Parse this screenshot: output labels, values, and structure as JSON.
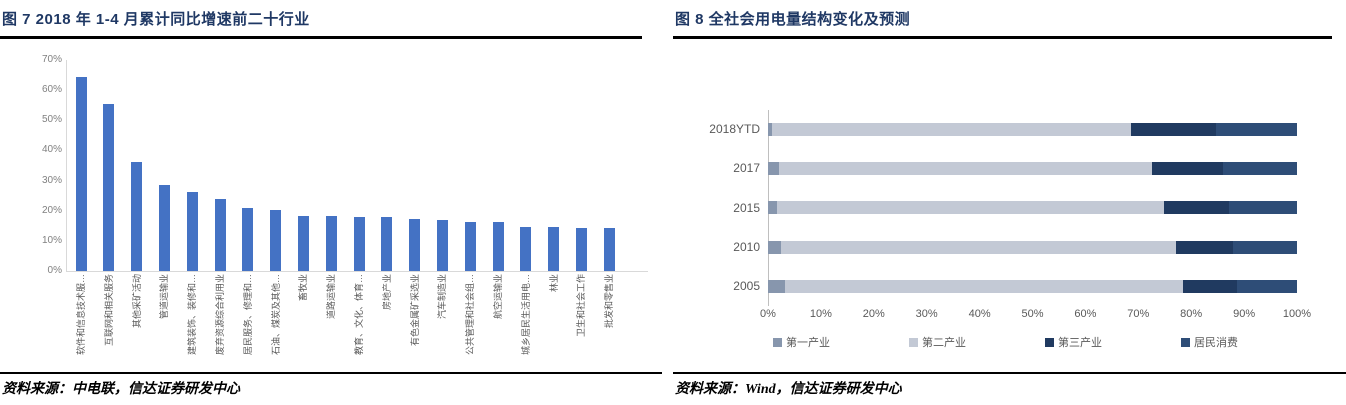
{
  "figure7": {
    "title": "图 7 2018 年 1-4 月累计同比增速前二十行业",
    "source": "资料来源：中电联，信达证券研发中心"
  },
  "figure8": {
    "title": "图 8 全社会用电量结构变化及预测",
    "source": "资料来源：Wind，信达证券研发中心"
  },
  "colors": {
    "title_navy": "#1F3864",
    "bar_blue": "#4472C4",
    "axis_gray": "#D9D9D9",
    "tick_gray": "#808080",
    "label_gray": "#595959"
  },
  "chart_data": [
    {
      "type": "bar",
      "title": "图 7 2018 年 1-4 月累计同比增速前二十行业",
      "categories": [
        "软件和信息技术服…",
        "互联网和相关服务",
        "其他采矿活动",
        "管道运输业",
        "建筑装饰、装修和…",
        "废弃资源综合利用业",
        "居民服务、修理和…",
        "石油、煤炭及其他…",
        "畜牧业",
        "道路运输业",
        "教育、文化、体育…",
        "房地产业",
        "有色金属矿采选业",
        "汽车制造业",
        "公共管理和社会组…",
        "航空运输业",
        "城乡居民生活用电…",
        "林业",
        "卫生和社会工作",
        "批发和零售业"
      ],
      "values": [
        64.5,
        55.4,
        36.3,
        28.6,
        26.2,
        24.0,
        21.0,
        20.3,
        18.4,
        18.2,
        18.0,
        17.9,
        17.3,
        17.0,
        16.4,
        16.2,
        14.6,
        14.5,
        14.4,
        14.2
      ],
      "unit": "%",
      "xlabel": "",
      "ylabel": "",
      "ylim": [
        0,
        70
      ],
      "ytick_labels": [
        "0%",
        "10%",
        "20%",
        "30%",
        "40%",
        "50%",
        "60%",
        "70%"
      ],
      "grid": false,
      "legend_position": "none",
      "bar_color": "#4472C4"
    },
    {
      "type": "bar-horizontal-stacked",
      "title": "图 8 全社会用电量结构变化及预测",
      "categories": [
        "2018YTD",
        "2017",
        "2015",
        "2010",
        "2005"
      ],
      "series": [
        {
          "name": "第一产业",
          "color": "#8796AD",
          "values": [
            0.8,
            2.0,
            1.7,
            2.5,
            3.2
          ]
        },
        {
          "name": "第二产业",
          "color": "#C3C9D5",
          "values": [
            67.8,
            70.5,
            73.1,
            74.6,
            75.3
          ]
        },
        {
          "name": "第三产业",
          "color": "#203A60",
          "values": [
            16.0,
            13.6,
            12.3,
            10.8,
            10.2
          ]
        },
        {
          "name": "居民消费",
          "color": "#2E4D77",
          "values": [
            15.4,
            13.9,
            12.9,
            12.1,
            11.3
          ]
        }
      ],
      "unit": "%",
      "xlim": [
        0,
        100
      ],
      "xtick_labels": [
        "0%",
        "10%",
        "20%",
        "30%",
        "40%",
        "50%",
        "60%",
        "70%",
        "80%",
        "90%",
        "100%"
      ],
      "grid": false,
      "legend_position": "bottom"
    }
  ]
}
